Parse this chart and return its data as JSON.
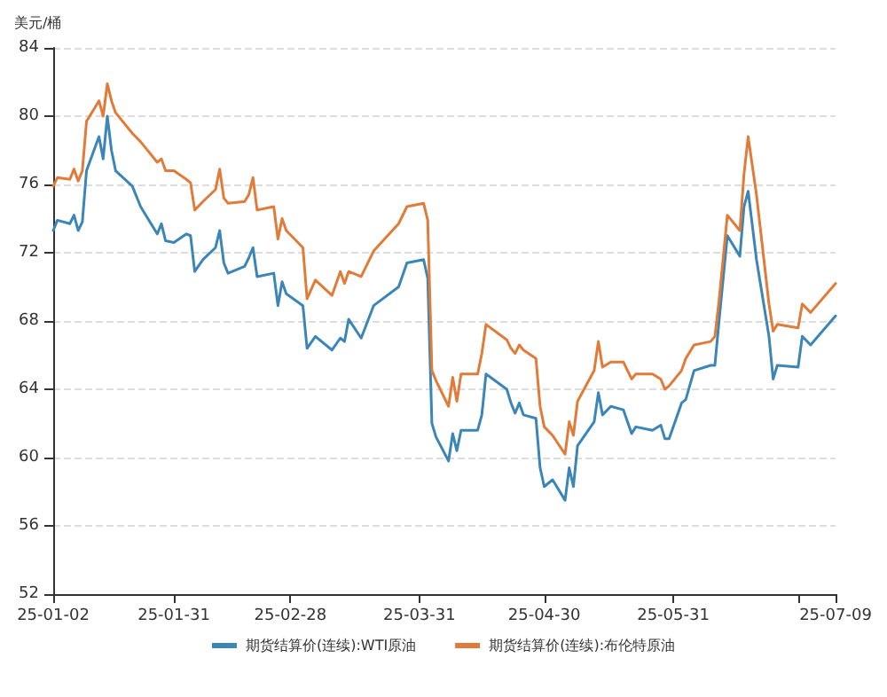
{
  "chart_data": {
    "type": "line",
    "ylabel": "美元/桶",
    "x": [
      "--01-02",
      "--01-03",
      "--01-06",
      "--01-07",
      "--01-08",
      "--01-09",
      "--01-10",
      "--01-13",
      "--01-14",
      "--01-15",
      "--01-16",
      "--01-17",
      "--01-21",
      "--01-23",
      "--01-24",
      "--01-27",
      "--01-28",
      "--01-29",
      "--01-31",
      "--02-03",
      "--02-04",
      "--02-05",
      "--02-07",
      "--02-10",
      "--02-11",
      "--02-12",
      "--02-13",
      "--02-17",
      "--02-18",
      "--02-19",
      "--02-20",
      "--02-24",
      "--02-25",
      "--02-26",
      "--02-27",
      "--03-03",
      "--03-04",
      "--03-06",
      "--03-10",
      "--03-12",
      "--03-13",
      "--03-14",
      "--03-17",
      "--03-20",
      "--03-26",
      "--03-28",
      "--04-01",
      "--04-02",
      "--04-03",
      "--04-04",
      "--04-07",
      "--04-08",
      "--04-09",
      "--04-10",
      "--04-14",
      "--04-15",
      "--04-16",
      "--04-21",
      "--04-22",
      "--04-23",
      "--04-24",
      "--04-25",
      "--04-28",
      "--04-29",
      "--04-30",
      "--05-02",
      "--05-05",
      "--05-06",
      "--05-07",
      "--05-08",
      "--05-12",
      "--05-13",
      "--05-14",
      "--05-16",
      "--05-19",
      "--05-21",
      "--05-22",
      "--05-26",
      "--05-28",
      "--05-29",
      "--05-30",
      "--06-02",
      "--06-03",
      "--06-05",
      "--06-09",
      "--06-10",
      "--06-11",
      "--06-13",
      "--06-16",
      "--06-17",
      "--06-18",
      "--06-20",
      "--06-23",
      "--06-24",
      "--06-25",
      "--06-30",
      "--07-01",
      "--07-03",
      "--07-09"
    ],
    "series": [
      {
        "name": "期货结算价(连续):WTI原油",
        "color": "#3b86b6",
        "values": [
          73.3,
          73.9,
          73.7,
          74.2,
          73.3,
          73.8,
          76.8,
          78.8,
          77.5,
          80.0,
          78.0,
          76.8,
          75.9,
          74.7,
          74.3,
          73.1,
          73.7,
          72.7,
          72.6,
          73.1,
          73.0,
          70.9,
          71.6,
          72.3,
          73.3,
          71.4,
          70.8,
          71.2,
          71.7,
          72.3,
          70.6,
          70.8,
          68.9,
          70.3,
          69.6,
          68.9,
          66.4,
          67.1,
          66.3,
          67.0,
          66.8,
          68.1,
          67.0,
          68.9,
          70.0,
          71.4,
          71.6,
          70.5,
          62.0,
          61.2,
          59.8,
          61.4,
          60.4,
          61.6,
          61.6,
          62.5,
          64.9,
          64.0,
          63.2,
          62.6,
          63.2,
          62.5,
          62.3,
          59.4,
          58.3,
          58.7,
          57.5,
          59.4,
          58.3,
          60.7,
          62.1,
          63.8,
          62.5,
          63.0,
          62.8,
          61.4,
          61.8,
          61.6,
          61.9,
          61.1,
          61.1,
          63.2,
          63.4,
          65.1,
          65.4,
          65.4,
          68.0,
          73.0,
          71.8,
          74.7,
          75.6,
          71.6,
          67.1,
          64.6,
          65.4,
          65.3,
          67.1,
          66.6,
          68.3
        ]
      },
      {
        "name": "期货结算价(连续):布伦特原油",
        "color": "#e07b39",
        "values": [
          75.9,
          76.4,
          76.3,
          76.9,
          76.2,
          76.8,
          79.7,
          80.9,
          80.0,
          81.9,
          80.9,
          80.2,
          79.0,
          78.5,
          78.2,
          77.3,
          77.5,
          76.8,
          76.8,
          76.3,
          76.1,
          74.5,
          75.0,
          75.7,
          76.9,
          75.2,
          74.9,
          75.0,
          75.4,
          76.4,
          74.5,
          74.7,
          72.8,
          74.0,
          73.3,
          72.3,
          69.3,
          70.4,
          69.5,
          70.9,
          70.2,
          70.9,
          70.6,
          72.1,
          73.7,
          74.7,
          74.9,
          73.9,
          65.1,
          64.5,
          63.0,
          64.7,
          63.3,
          64.9,
          64.9,
          66.1,
          67.8,
          66.9,
          66.4,
          66.1,
          66.6,
          66.3,
          65.8,
          63.0,
          61.8,
          61.3,
          60.2,
          62.1,
          61.3,
          63.3,
          65.1,
          66.8,
          65.3,
          65.6,
          65.6,
          64.6,
          64.9,
          64.9,
          64.6,
          64.0,
          64.2,
          65.1,
          65.8,
          66.6,
          66.8,
          67.1,
          69.2,
          74.2,
          73.3,
          76.6,
          78.8,
          75.4,
          69.0,
          67.4,
          67.8,
          67.6,
          69.0,
          68.5,
          70.2
        ]
      }
    ],
    "xlim": [
      "--01-02",
      "--07-09"
    ],
    "xticks": [
      {
        "value": "--01-02",
        "label": "25-01-02"
      },
      {
        "value": "--01-31",
        "label": "25-01-31"
      },
      {
        "value": "--02-28",
        "label": "25-02-28"
      },
      {
        "value": "--03-31",
        "label": "25-03-31"
      },
      {
        "value": "--04-30",
        "label": "25-04-30"
      },
      {
        "value": "--05-31",
        "label": "25-05-31"
      },
      {
        "value": "--06-30",
        "label": null
      },
      {
        "value": "--07-09",
        "label": "25-07-09"
      }
    ],
    "ylim": [
      52,
      84
    ],
    "yticks": [
      52,
      56,
      60,
      64,
      68,
      72,
      76,
      80,
      84
    ],
    "grid": "y",
    "legend": "bottom",
    "marker": "none",
    "line_style": "solid"
  }
}
